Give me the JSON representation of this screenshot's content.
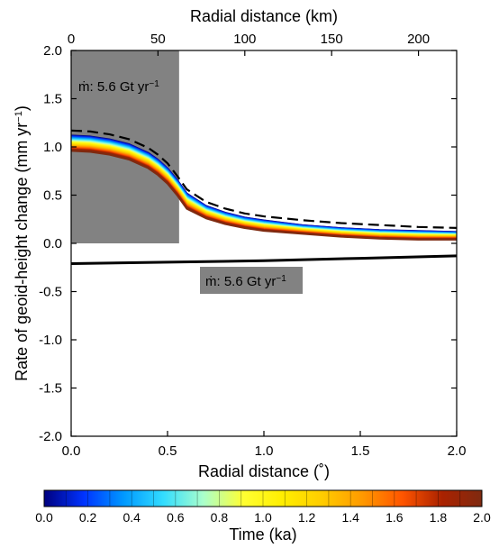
{
  "chart_data": {
    "type": "line",
    "xlabel": "Radial distance (˚)",
    "x2label": "Radial distance (km)",
    "ylabel": "Rate of geoid-height change (mm yr",
    "ylabel_sup": "−1",
    "ylabel_end": ")",
    "xlim": [
      0.0,
      2.0
    ],
    "x2lim": [
      0,
      222
    ],
    "ylim": [
      -2.0,
      2.0
    ],
    "x_ticks": [
      0.0,
      0.5,
      1.0,
      1.5,
      2.0
    ],
    "x_tick_labels": [
      "0.0",
      "0.5",
      "1.0",
      "1.5",
      "2.0"
    ],
    "x2_ticks": [
      0,
      50,
      100,
      150,
      200
    ],
    "x2_tick_labels": [
      "0",
      "50",
      "100",
      "150",
      "200"
    ],
    "y_ticks": [
      -2.0,
      -1.5,
      -1.0,
      -0.5,
      0.0,
      0.5,
      1.0,
      1.5,
      2.0
    ],
    "y_tick_labels": [
      "-2.0",
      "-1.5",
      "-1.0",
      "-0.5",
      "0.0",
      "0.5",
      "1.0",
      "1.5",
      "2.0"
    ],
    "load_region": {
      "x_start": 0.0,
      "x_end": 0.56,
      "y_bottom": 0.0,
      "y_top": 2.0
    },
    "annotations": [
      {
        "text": "ṁ: 5.6 Gt yr",
        "sup": "−1"
      },
      {
        "text": "ṁ: 5.6 Gt yr",
        "sup": "−1"
      }
    ],
    "curve_x": [
      0.0,
      0.1,
      0.2,
      0.3,
      0.4,
      0.45,
      0.5,
      0.55,
      0.6,
      0.7,
      0.8,
      0.9,
      1.0,
      1.2,
      1.4,
      1.6,
      1.8,
      2.0
    ],
    "time_series": [
      {
        "time": 0.0,
        "y": [
          1.12,
          1.11,
          1.08,
          1.03,
          0.94,
          0.87,
          0.78,
          0.66,
          0.52,
          0.39,
          0.32,
          0.27,
          0.24,
          0.19,
          0.16,
          0.14,
          0.13,
          0.12
        ]
      },
      {
        "time": 2.0,
        "y": [
          0.96,
          0.95,
          0.92,
          0.87,
          0.78,
          0.71,
          0.62,
          0.5,
          0.36,
          0.26,
          0.2,
          0.16,
          0.13,
          0.1,
          0.07,
          0.05,
          0.04,
          0.04
        ]
      }
    ],
    "dashed_series": {
      "y": [
        1.17,
        1.16,
        1.13,
        1.08,
        0.99,
        0.92,
        0.83,
        0.7,
        0.56,
        0.43,
        0.36,
        0.31,
        0.28,
        0.24,
        0.21,
        0.19,
        0.17,
        0.16
      ]
    },
    "negative_series": {
      "x": [
        0.0,
        0.5,
        1.0,
        1.5,
        2.0
      ],
      "y": [
        -0.21,
        -0.195,
        -0.18,
        -0.155,
        -0.13
      ]
    },
    "colorbar": {
      "label": "Time (ka)",
      "range": [
        0.0,
        2.0
      ],
      "ticks": [
        0.0,
        0.2,
        0.4,
        0.6,
        0.8,
        1.0,
        1.2,
        1.4,
        1.6,
        1.8,
        2.0
      ],
      "tick_labels": [
        "0.0",
        "0.2",
        "0.4",
        "0.6",
        "0.8",
        "1.0",
        "1.2",
        "1.4",
        "1.6",
        "1.8",
        "2.0"
      ],
      "colors": [
        "#00007f",
        "#0033ff",
        "#0099ff",
        "#33ddff",
        "#aaffcc",
        "#ffff33",
        "#ffee00",
        "#ffcc00",
        "#ff9900",
        "#ff5500",
        "#aa2200",
        "#7f2a10"
      ]
    },
    "colors": {
      "load_fill": "#828282",
      "dashed_line": "#000000",
      "negative_line": "#000000"
    }
  }
}
